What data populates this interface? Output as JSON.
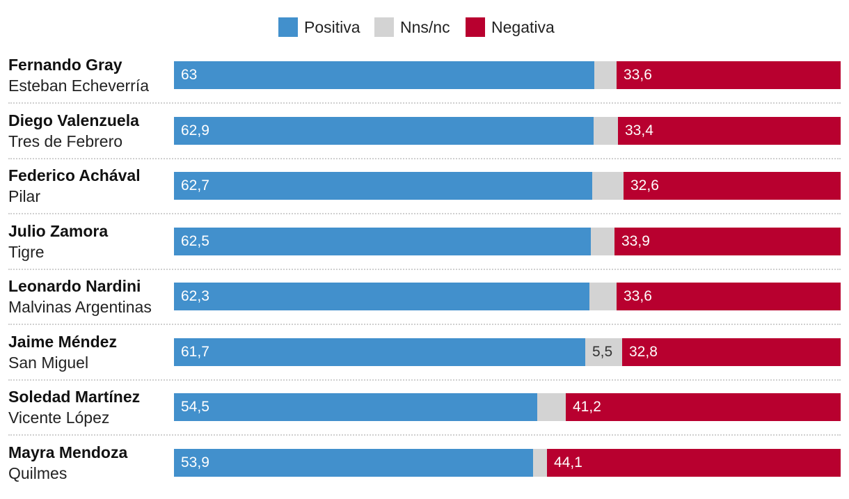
{
  "chart_data": {
    "type": "bar",
    "orientation": "horizontal",
    "stacked": true,
    "legend_position": "top-center",
    "colors": {
      "Positiva": "#4290cc",
      "Nns/nc": "#d3d3d3",
      "Negativa": "#b8002f"
    },
    "series_names": [
      "Positiva",
      "Nns/nc",
      "Negativa"
    ],
    "rows": [
      {
        "name": "Fernando Gray",
        "place": "Esteban Echeverría",
        "values": [
          63,
          3.4,
          33.6
        ],
        "labels": [
          "63",
          "",
          "33,6"
        ]
      },
      {
        "name": "Diego Valenzuela",
        "place": "Tres de Febrero",
        "values": [
          62.9,
          3.7,
          33.4
        ],
        "labels": [
          "62,9",
          "",
          "33,4"
        ]
      },
      {
        "name": "Federico Achával",
        "place": "Pilar",
        "values": [
          62.7,
          4.7,
          32.6
        ],
        "labels": [
          "62,7",
          "",
          "32,6"
        ]
      },
      {
        "name": "Julio Zamora",
        "place": "Tigre",
        "values": [
          62.5,
          3.6,
          33.9
        ],
        "labels": [
          "62,5",
          "",
          "33,9"
        ]
      },
      {
        "name": "Leonardo Nardini",
        "place": "Malvinas Argentinas",
        "values": [
          62.3,
          4.1,
          33.6
        ],
        "labels": [
          "62,3",
          "",
          "33,6"
        ]
      },
      {
        "name": "Jaime Méndez",
        "place": "San Miguel",
        "values": [
          61.7,
          5.5,
          32.8
        ],
        "labels": [
          "61,7",
          "5,5",
          "32,8"
        ]
      },
      {
        "name": "Soledad Martínez",
        "place": "Vicente López",
        "values": [
          54.5,
          4.3,
          41.2
        ],
        "labels": [
          "54,5",
          "",
          "41,2"
        ]
      },
      {
        "name": "Mayra Mendoza",
        "place": "Quilmes",
        "values": [
          53.9,
          2.0,
          44.1
        ],
        "labels": [
          "53,9",
          "",
          "44,1"
        ]
      }
    ],
    "xlim": [
      0,
      100
    ]
  }
}
